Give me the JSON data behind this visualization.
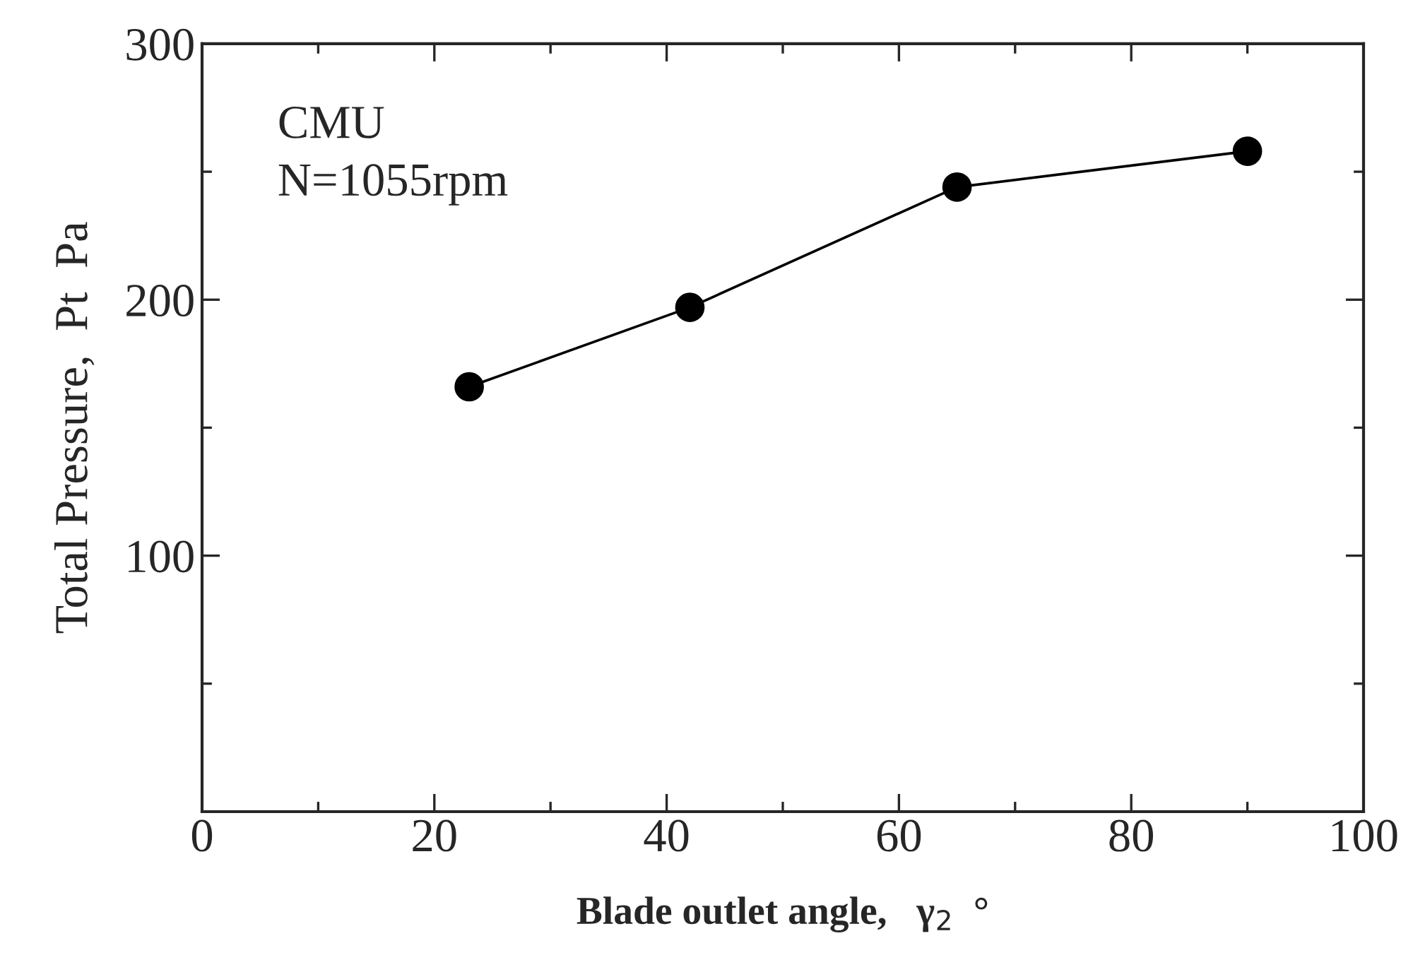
{
  "chart_data": {
    "type": "line",
    "xlabel": "Blade outlet angle,   γ$_{2}$  °",
    "ylabel": "Total Pressure,  Pt  Pa",
    "x": [
      23,
      42,
      65,
      90
    ],
    "series": [
      {
        "color": "#000000",
        "values": [
          166,
          197,
          244,
          258
        ]
      }
    ],
    "marker": "circle",
    "line_style": "solid",
    "xlim": [
      0,
      100
    ],
    "xticks": [
      0,
      20,
      40,
      60,
      80,
      100
    ],
    "ylim": [
      0,
      300
    ],
    "yticks": [
      {
        "value": 0,
        "label": null
      },
      100,
      200,
      300
    ],
    "annotations": [
      "CMU",
      "N=1055rpm"
    ],
    "grid": false,
    "legend": false
  }
}
